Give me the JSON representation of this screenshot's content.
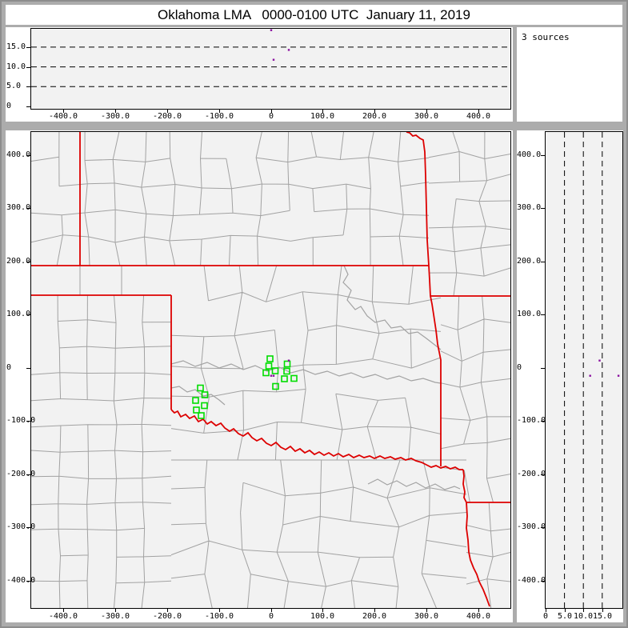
{
  "title": "Oklahoma LMA   0000-0100 UTC  January 11, 2019",
  "sources_box": {
    "label": "3 sources",
    "count": 3
  },
  "colors": {
    "window_gray": "#acacac",
    "panel_white": "#ffffff",
    "plot_background": "#f2f2f2",
    "county_line": "#a2a2a2",
    "state_border_red": "#dd0000",
    "station_green": "#00dd00",
    "source_purple": "#8a10a0",
    "axis_black": "#000000"
  },
  "chart_data": {
    "type": "scatter",
    "title": "Oklahoma LMA   0000-0100 UTC  January 11, 2019",
    "panels": [
      "altitude-vs-east-west",
      "plan-view-map",
      "altitude-vs-north-south"
    ],
    "source_count_text": "3 sources",
    "sources_km": [
      {
        "east": 0.8,
        "north": -15.3,
        "alt": 19.3
      },
      {
        "east": 34.7,
        "north": 13.2,
        "alt": 14.3
      },
      {
        "east": 5.4,
        "north": -15.3,
        "alt": 11.8
      }
    ],
    "stations_east_north_km": [
      [
        -1.5,
        16.5
      ],
      [
        -3.9,
        3.0
      ],
      [
        31.6,
        6.8
      ],
      [
        -9.2,
        -9.8
      ],
      [
        8.5,
        -6.0
      ],
      [
        30.8,
        -6.8
      ],
      [
        26.2,
        -21.1
      ],
      [
        44.7,
        -20.3
      ],
      [
        9.2,
        -35.3
      ],
      [
        -135.6,
        -38.3
      ],
      [
        -127.1,
        -51.1
      ],
      [
        -144.8,
        -61.7
      ],
      [
        -127.9,
        -71.4
      ],
      [
        -143.3,
        -79.7
      ],
      [
        -134.1,
        -90.2
      ]
    ],
    "axes": {
      "east_west": {
        "range_km": [
          -461,
          462
        ],
        "tick_values": [
          -400,
          -300,
          -200,
          -100,
          0,
          100,
          200,
          300,
          400
        ],
        "tick_labels": [
          "-400.0",
          "-300.0",
          "-200.0",
          "-100.0",
          "0",
          "100.0",
          "200.0",
          "300.0",
          "400.0"
        ]
      },
      "north_south": {
        "range_km": [
          -452,
          443
        ],
        "tick_values": [
          400,
          300,
          200,
          100,
          0,
          -100,
          -200,
          -300,
          -400
        ],
        "tick_labels": [
          "400.0",
          "300.0",
          "200.0",
          "100.0",
          "0",
          "-100.0",
          "-200.0",
          "-300.0",
          "-400.0"
        ]
      },
      "altitude": {
        "range_km": [
          0,
          20.2
        ],
        "tick_values": [
          0,
          5,
          10,
          15
        ],
        "tick_labels": [
          "0",
          "5.0",
          "10.0",
          "15.0"
        ],
        "dashed_gridlines": [
          5,
          10,
          15
        ]
      }
    },
    "grid": "dashed altitude gridlines only",
    "legend_position": "none"
  }
}
